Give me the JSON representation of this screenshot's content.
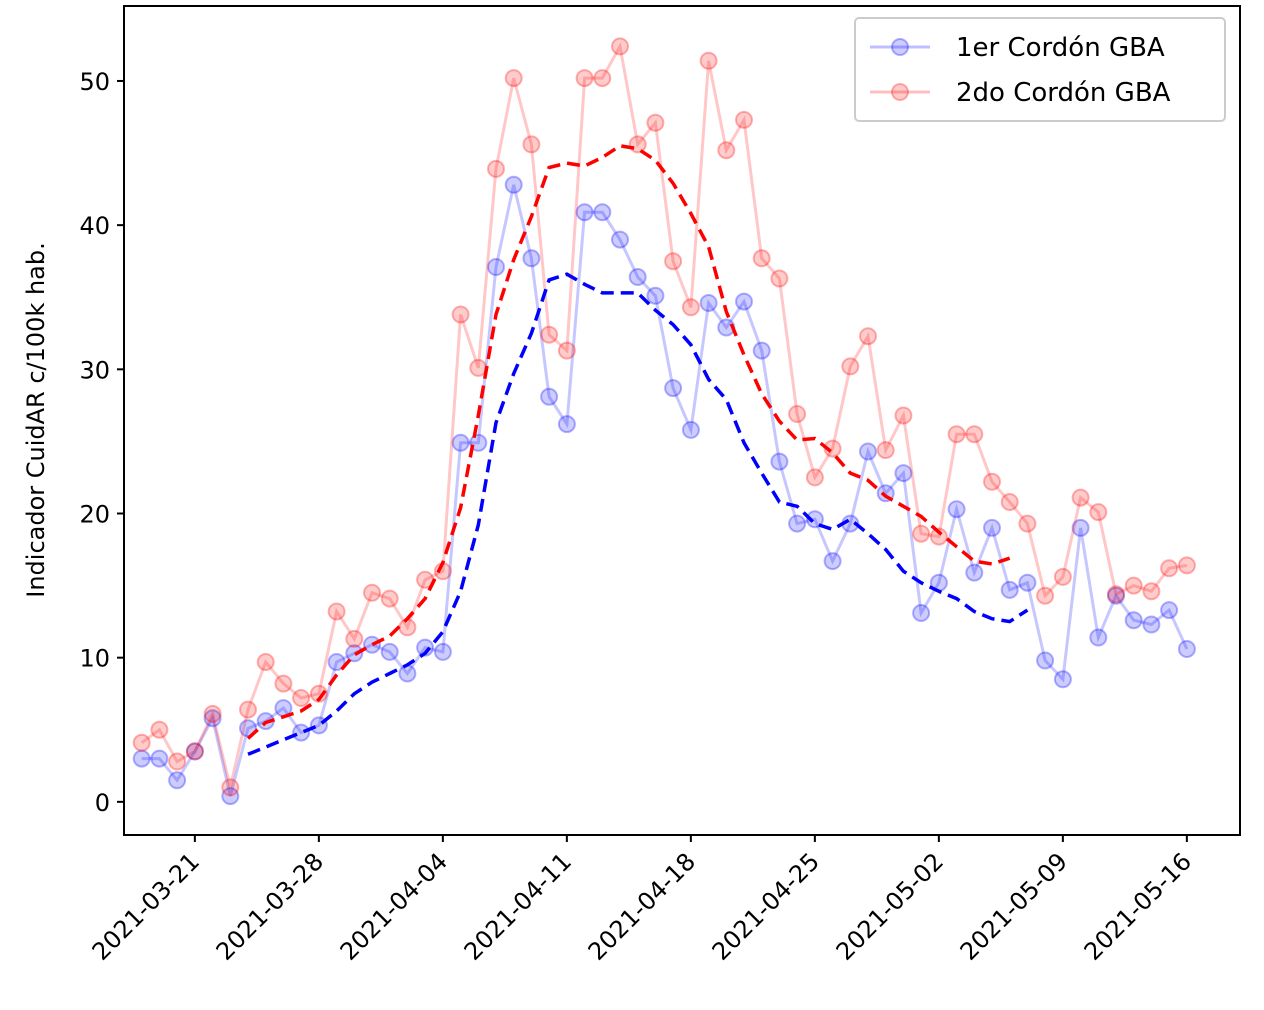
{
  "chart_data": {
    "type": "line",
    "ylabel": "Indicador CuidAR c/100k hab.",
    "xlabel": "",
    "x_start": "2021-03-18",
    "x_end": "2021-05-16",
    "x_ticks": [
      "2021-03-21",
      "2021-03-28",
      "2021-04-04",
      "2021-04-11",
      "2021-04-18",
      "2021-04-25",
      "2021-05-02",
      "2021-05-09",
      "2021-05-16"
    ],
    "y_ticks": [
      0,
      10,
      20,
      30,
      40,
      50
    ],
    "xlim": [
      "2021-03-17",
      "2021-05-19"
    ],
    "ylim": [
      -2.3,
      55.2
    ],
    "grid": false,
    "legend_position": "top-right",
    "series": [
      {
        "name": "1er Cordón GBA",
        "color": "#0000ff",
        "style": "markers-faint",
        "values": [
          3.0,
          3.0,
          1.5,
          3.5,
          5.8,
          0.4,
          5.1,
          5.6,
          6.5,
          4.8,
          5.3,
          9.7,
          10.3,
          10.9,
          10.4,
          8.9,
          10.7,
          10.4,
          24.9,
          24.9,
          37.1,
          42.8,
          37.7,
          28.1,
          26.2,
          40.9,
          40.9,
          39.0,
          36.4,
          35.1,
          28.7,
          25.8,
          34.6,
          32.9,
          34.7,
          31.3,
          23.6,
          19.3,
          19.6,
          16.7,
          19.3,
          24.3,
          21.4,
          22.8,
          13.1,
          15.2,
          20.3,
          15.9,
          19.0,
          14.7,
          15.2,
          9.8,
          8.5,
          19.0,
          11.4,
          14.3,
          12.6,
          12.3,
          13.3,
          10.6
        ]
      },
      {
        "name": "2do Cordón GBA",
        "color": "#ff0000",
        "style": "markers-faint",
        "values": [
          4.1,
          5.0,
          2.8,
          3.5,
          6.1,
          1.0,
          6.4,
          9.7,
          8.2,
          7.2,
          7.5,
          13.2,
          11.3,
          14.5,
          14.1,
          12.1,
          15.4,
          16.0,
          33.8,
          30.1,
          43.9,
          50.2,
          45.6,
          32.4,
          31.3,
          50.2,
          50.2,
          52.4,
          45.6,
          47.1,
          37.5,
          34.3,
          51.4,
          45.2,
          47.3,
          37.7,
          36.3,
          26.9,
          22.5,
          24.5,
          30.2,
          32.3,
          24.4,
          26.8,
          18.6,
          18.4,
          25.5,
          25.5,
          22.2,
          20.8,
          19.3,
          14.3,
          15.6,
          21.1,
          20.1,
          14.4,
          15.0,
          14.6,
          16.2,
          16.4
        ]
      },
      {
        "name": "",
        "color": "#0000ff",
        "style": "dashed",
        "start_index": 6,
        "values": [
          3.3,
          3.8,
          4.3,
          4.8,
          5.3,
          6.3,
          7.5,
          8.3,
          8.9,
          9.5,
          10.3,
          11.8,
          14.6,
          19.2,
          26.3,
          29.7,
          32.5,
          36.2,
          36.6,
          35.9,
          35.3,
          35.3,
          35.3,
          34.1,
          33.1,
          31.7,
          29.3,
          27.9,
          24.9,
          22.8,
          20.8,
          20.5,
          19.3,
          18.9,
          19.6,
          18.6,
          17.5,
          16.0,
          15.2,
          14.6,
          14.1,
          13.2,
          12.7,
          12.5,
          13.3
        ]
      },
      {
        "name": "",
        "color": "#ff0000",
        "style": "dashed",
        "start_index": 6,
        "values": [
          4.4,
          5.5,
          5.9,
          6.3,
          7.1,
          8.8,
          10.2,
          10.9,
          11.5,
          12.7,
          14.1,
          16.6,
          20.4,
          26.8,
          33.8,
          37.6,
          40.6,
          44.0,
          44.3,
          44.1,
          44.7,
          45.5,
          45.3,
          44.5,
          42.9,
          40.8,
          38.5,
          34.0,
          31.0,
          28.3,
          26.4,
          25.1,
          25.2,
          24.2,
          22.8,
          22.3,
          21.2,
          20.5,
          19.8,
          18.7,
          17.7,
          16.7,
          16.5,
          16.9
        ]
      }
    ]
  }
}
